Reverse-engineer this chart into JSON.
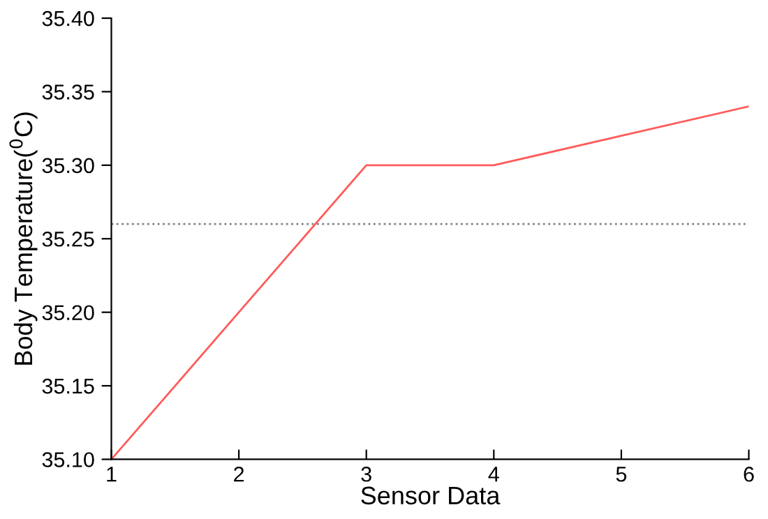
{
  "chart_data": {
    "type": "line",
    "xlabel": "Sensor Data",
    "ylabel": "Body Temperature($^{0}$C)",
    "x": [
      1,
      2,
      3,
      4,
      5,
      6
    ],
    "series": [
      {
        "color": "#ff5a5a",
        "values": [
          35.1,
          35.2,
          35.3,
          35.3,
          35.32,
          35.34
        ]
      }
    ],
    "xlim": [
      1,
      6
    ],
    "xticks": [
      1,
      2,
      3,
      4,
      5,
      6
    ],
    "ylim": [
      35.1,
      35.4
    ],
    "yticks": [
      {
        "value": 35.1,
        "label": "35.10"
      },
      {
        "value": 35.15,
        "label": "35.15"
      },
      {
        "value": 35.2,
        "label": "35.20"
      },
      {
        "value": 35.25,
        "label": "35.25"
      },
      {
        "value": 35.3,
        "label": "35.30"
      },
      {
        "value": 35.35,
        "label": "35.35"
      },
      {
        "value": 35.4,
        "label": "35.40"
      }
    ],
    "ref_lines": [
      {
        "axis": "y",
        "value": 35.26,
        "label": null,
        "color": "#808080",
        "line_style": "dotted"
      }
    ],
    "grid": false,
    "marker": "none",
    "line_style": "solid"
  }
}
